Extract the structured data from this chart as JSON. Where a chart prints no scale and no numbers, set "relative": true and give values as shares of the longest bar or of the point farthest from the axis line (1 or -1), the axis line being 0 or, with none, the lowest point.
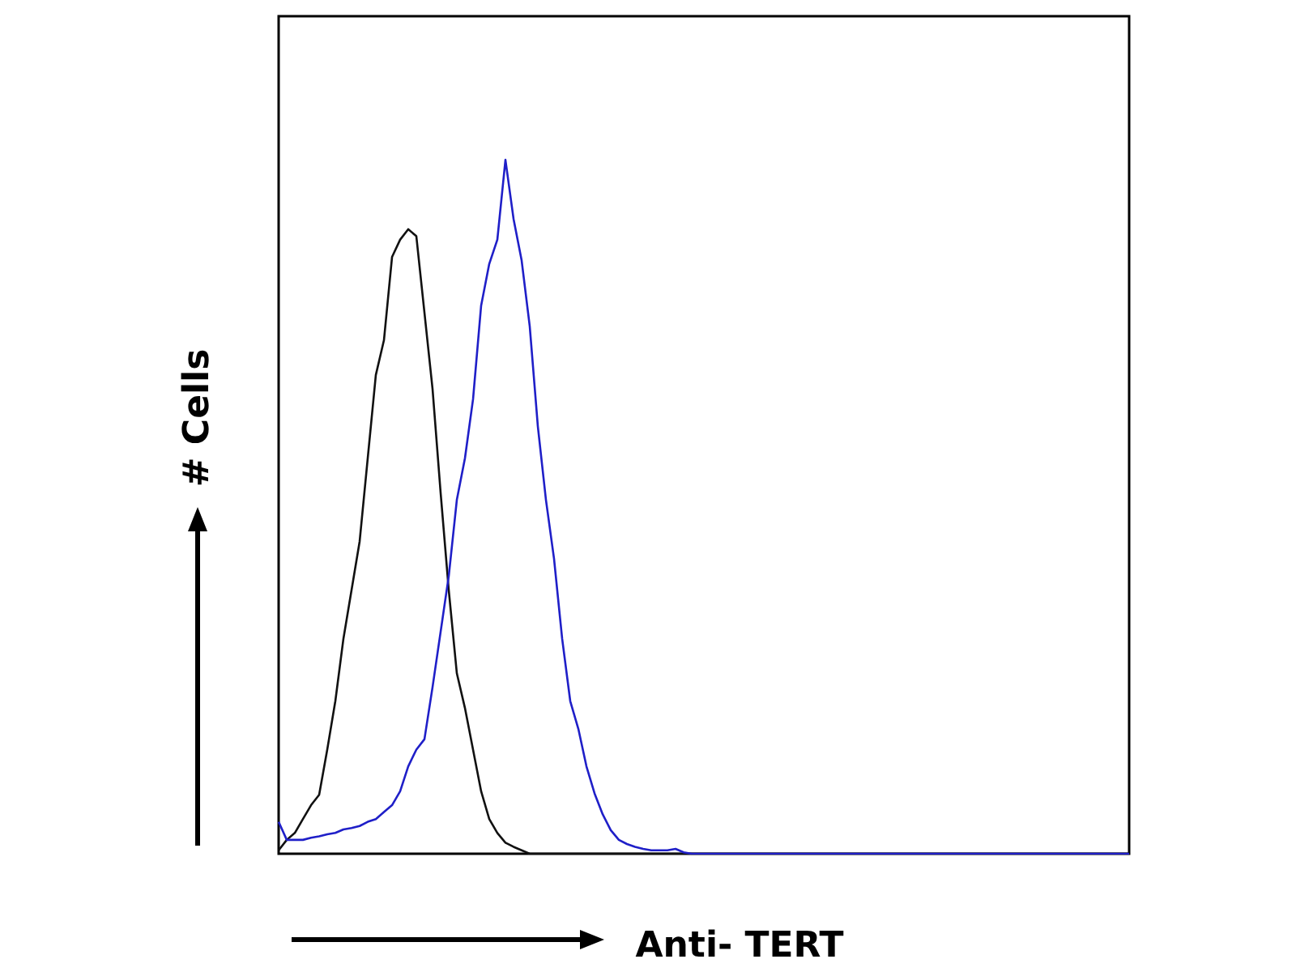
{
  "chart_data": {
    "type": "line",
    "relative": true,
    "xlabel": "Anti- TERT",
    "ylabel": "# Cells",
    "grid": false,
    "categories": [
      null,
      null,
      null,
      null,
      null,
      null,
      null,
      null,
      null,
      null,
      null,
      null,
      null,
      null,
      null,
      null,
      null,
      null,
      null,
      null,
      null,
      null,
      null,
      null,
      null,
      null,
      null,
      null,
      null,
      null,
      null,
      null,
      null,
      null,
      null,
      null,
      null,
      null,
      null,
      null,
      null,
      null,
      null,
      null,
      null,
      null,
      null,
      null,
      null,
      null,
      null,
      null,
      null,
      null,
      null,
      null,
      null,
      null,
      null,
      null,
      null,
      null,
      null,
      null,
      null,
      null,
      null,
      null,
      null,
      null,
      null,
      null,
      null,
      null,
      null,
      null,
      null,
      null,
      null,
      null,
      null,
      null,
      null,
      null,
      null,
      null,
      null,
      null,
      null,
      null,
      null,
      null,
      null,
      null,
      null,
      null,
      null,
      null,
      null,
      null,
      null,
      null,
      null,
      null,
      null,
      null
    ],
    "series": [
      {
        "color": "#111111",
        "values": [
          0.005,
          0.02,
          0.03,
          0.05,
          0.07,
          0.085,
          0.15,
          0.22,
          0.31,
          0.38,
          0.45,
          0.57,
          0.69,
          0.74,
          0.86,
          0.885,
          0.9,
          0.89,
          0.78,
          0.67,
          0.52,
          0.38,
          0.26,
          0.21,
          0.15,
          0.09,
          0.05,
          0.03,
          0.016,
          0.01,
          0.005,
          0,
          0,
          0,
          0,
          0,
          0,
          0,
          0,
          0,
          0,
          0,
          0,
          0,
          0,
          0,
          0,
          0,
          0,
          0,
          0,
          0,
          0,
          0,
          0,
          0,
          0,
          0,
          0,
          0,
          0,
          0,
          0,
          0,
          0,
          0,
          0,
          0,
          0,
          0,
          0,
          0,
          0,
          0,
          0,
          0,
          0,
          0,
          0,
          0,
          0,
          0,
          0,
          0,
          0,
          0,
          0,
          0,
          0,
          0,
          0,
          0,
          0,
          0,
          0,
          0,
          0,
          0,
          0,
          0,
          0,
          0,
          0,
          0,
          0,
          0
        ]
      },
      {
        "color": "#1f1fc8",
        "values": [
          0.046,
          0.02,
          0.02,
          0.02,
          0.023,
          0.025,
          0.028,
          0.03,
          0.035,
          0.037,
          0.04,
          0.046,
          0.05,
          0.06,
          0.07,
          0.09,
          0.126,
          0.15,
          0.165,
          0.24,
          0.32,
          0.4,
          0.51,
          0.57,
          0.655,
          0.79,
          0.85,
          0.885,
          1,
          0.915,
          0.855,
          0.76,
          0.616,
          0.51,
          0.425,
          0.31,
          0.22,
          0.18,
          0.126,
          0.087,
          0.057,
          0.034,
          0.02,
          0.014,
          0.01,
          0.007,
          0.005,
          0.005,
          0.005,
          0.007,
          0.002,
          0,
          0,
          0,
          0,
          0,
          0,
          0,
          0,
          0,
          0,
          0,
          0,
          0,
          0,
          0,
          0,
          0,
          0,
          0,
          0,
          0,
          0,
          0,
          0,
          0,
          0,
          0,
          0,
          0,
          0,
          0,
          0,
          0,
          0,
          0,
          0,
          0,
          0,
          0,
          0,
          0,
          0,
          0,
          0,
          0,
          0,
          0,
          0,
          0,
          0,
          0,
          0,
          0,
          0,
          0
        ]
      }
    ]
  }
}
